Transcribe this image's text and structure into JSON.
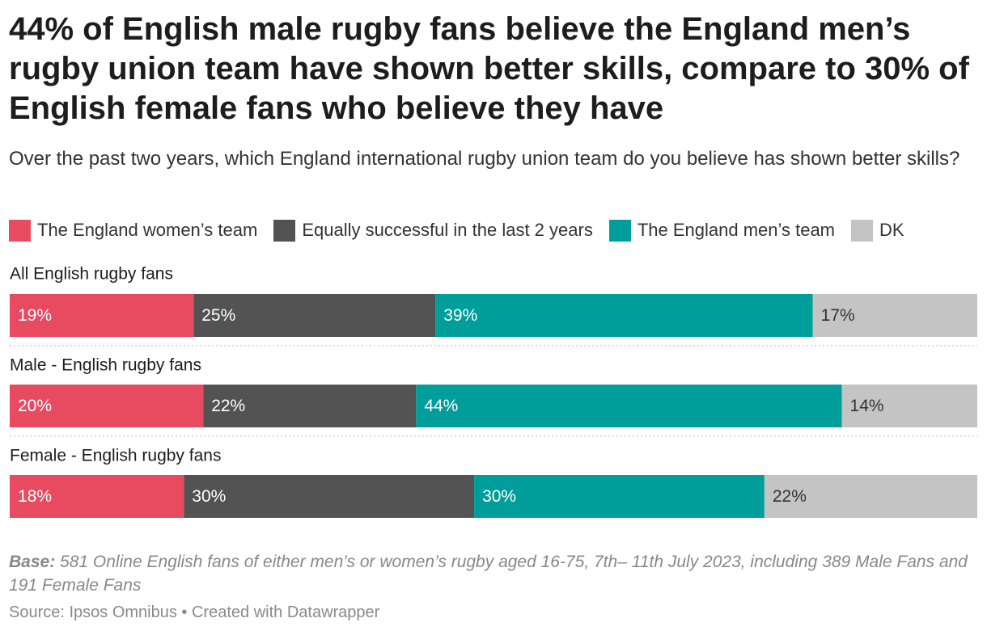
{
  "title": "44% of English male rugby fans believe the England men’s rugby union team have shown better skills, compare to 30% of English female fans who believe they have",
  "subtitle": "Over the past two years, which England international rugby union team do you believe has shown better skills?",
  "notes": {
    "label": "Base:",
    "text": "581 Online English fans of either men’s or women’s rugby aged 16-75, 7th– 11th July 2023, including 389 Male Fans and 191 Female Fans"
  },
  "source": "Source: Ipsos Omnibus • Created with Datawrapper",
  "chart_data": {
    "type": "bar",
    "stacked": true,
    "orientation": "horizontal",
    "value_unit": "%",
    "categories": [
      "All English rugby fans",
      "Male - English rugby fans",
      "Female - English rugby fans"
    ],
    "series": [
      {
        "name": "The England women’s team",
        "color": "#e84a5f",
        "values": [
          19,
          20,
          18
        ],
        "label_color": "#ffffff"
      },
      {
        "name": "Equally successful in the last 2 years",
        "color": "#535353",
        "values": [
          25,
          22,
          30
        ],
        "label_color": "#ffffff"
      },
      {
        "name": "The England men’s team",
        "color": "#009e9a",
        "values": [
          39,
          44,
          30
        ],
        "label_color": "#ffffff"
      },
      {
        "name": "DK",
        "color": "#c4c4c4",
        "values": [
          17,
          14,
          22
        ],
        "label_color": "#333333"
      }
    ],
    "legend_position": "top-left",
    "grid": false
  }
}
